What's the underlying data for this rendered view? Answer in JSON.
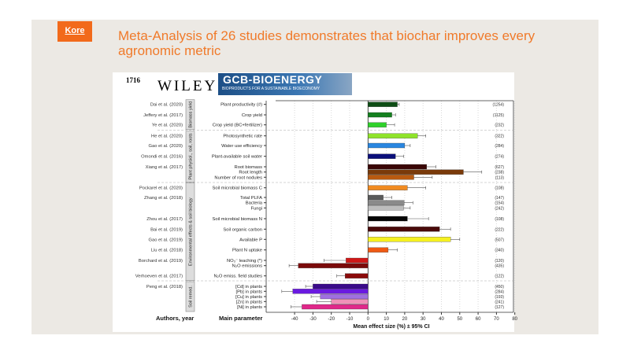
{
  "slide": {
    "logo": "Kore",
    "title": "Meta-Analysis of 26 studies demonstrates that biochar improves every agronomic metric"
  },
  "figure_header": {
    "page_number": "1716",
    "publisher": "WILEY",
    "journal": "GCB-BIOENERGY",
    "journal_subtitle": "BIOPRODUCTS FOR A SUSTAINABLE BIOECONOMY"
  },
  "chart_data": {
    "type": "bar",
    "orientation": "horizontal",
    "xlabel": "Mean effect size (%) ± 95% CI",
    "col_authors_label": "Authors, year",
    "col_param_label": "Main parameter",
    "xlim": [
      -55,
      80
    ],
    "xticks": [
      -40,
      -30,
      -20,
      -10,
      0,
      10,
      20,
      30,
      40,
      50,
      60,
      70,
      80
    ],
    "grid": true,
    "groups": [
      {
        "label": "Biomass yield",
        "rows": [
          0,
          2
        ]
      },
      {
        "label": "Plant physiol., soil, roots",
        "rows": [
          3,
          8
        ]
      },
      {
        "label": "Environmental effects & soil biology",
        "rows": [
          9,
          19
        ]
      },
      {
        "label": "Soil remed.",
        "rows": [
          20,
          24
        ]
      }
    ],
    "authors": [
      {
        "label": "Dai et al. (2020)",
        "row": 0
      },
      {
        "label": "Jeffery et al. (2017)",
        "row": 1
      },
      {
        "label": "Ye et al. (2020)",
        "row": 2
      },
      {
        "label": "He et al. (2020)",
        "row": 3
      },
      {
        "label": "Gao et al. (2020)",
        "row": 4
      },
      {
        "label": "Omondi et al. (2016)",
        "row": 5
      },
      {
        "label": "Xiang et al. (2017)",
        "row": 6
      },
      {
        "label": "Pockarel et al. (2020)",
        "row": 9
      },
      {
        "label": "Zhang et al. (2018)",
        "row": 10
      },
      {
        "label": "Zhou et al. (2017)",
        "row": 13
      },
      {
        "label": "Bai et al. (2019)",
        "row": 14
      },
      {
        "label": "Gao et al. (2019)",
        "row": 15
      },
      {
        "label": "Liu et al. (2018)",
        "row": 16
      },
      {
        "label": "Borchard et al. (2019)",
        "row": 17
      },
      {
        "label": "Verhoeven et al. (2017)",
        "row": 19
      },
      {
        "label": "Peng et al. (2018)",
        "row": 20
      }
    ],
    "series": [
      {
        "name": "Plant productivity (#)",
        "value": 16,
        "ci": 17,
        "n": "(1254)",
        "color": "#0d4d14"
      },
      {
        "name": "Crop yield",
        "value": 13,
        "ci": 15,
        "n": "(1125)",
        "color": "#14801f"
      },
      {
        "name": "Crop yield (BC+fertilizer)",
        "value": 10,
        "ci": 14.5,
        "n": "(232)",
        "color": "#2fd12a"
      },
      {
        "name": "Photosynthetic rate",
        "value": 27,
        "ci": 31.5,
        "n": "(322)",
        "color": "#8fe32a"
      },
      {
        "name": "Water use efficiency",
        "value": 20,
        "ci": 23,
        "n": "(284)",
        "color": "#2a86e0"
      },
      {
        "name": "Plant-available soil water",
        "value": 15,
        "ci": 19.5,
        "n": "(274)",
        "color": "#0b0f7a"
      },
      {
        "name": "Root biomass",
        "value": 32,
        "ci": 37,
        "n": "(627)",
        "color": "#3a0505"
      },
      {
        "name": "Root length",
        "value": 52,
        "ci": 62,
        "n": "(238)",
        "color": "#7a3a0a"
      },
      {
        "name": "Number of root nodules",
        "value": 25,
        "ci": 35,
        "n": "(113)",
        "color": "#b85a10"
      },
      {
        "name": "Soil microbial biomass C",
        "value": 21.5,
        "ci": 31.5,
        "n": "(108)",
        "color": "#f08a20"
      },
      {
        "name": "Total PLFA",
        "value": 8.3,
        "ci": 13,
        "n": "(147)",
        "color": "#5a5a5a"
      },
      {
        "name": "Bacteria",
        "value": 19.7,
        "ci": 24.5,
        "n": "(154)",
        "color": "#8a8a8a"
      },
      {
        "name": "Fungi",
        "value": 19.4,
        "ci": 23,
        "n": "(242)",
        "color": "#bdbdbd"
      },
      {
        "name": "Soil microbial biomass N",
        "value": 21.5,
        "ci": 33,
        "n": "(108)",
        "color": "#050505"
      },
      {
        "name": "Soil organic carbon",
        "value": 39,
        "ci": 45,
        "n": "(222)",
        "color": "#4a0a0a"
      },
      {
        "name": "Available P",
        "value": 45,
        "ci": 50,
        "n": "(507)",
        "color": "#f5f020"
      },
      {
        "name": "Plant N uptake",
        "value": 11,
        "ci": 16,
        "n": "(340)",
        "color": "#f05a14"
      },
      {
        "name": "NO₃⁻ leaching (*)",
        "value": -12,
        "ci": -24,
        "n": "(120)",
        "color": "#d01818"
      },
      {
        "name": "N₂O emissions",
        "value": -38,
        "ci": -43,
        "n": "(435)",
        "color": "#7a0a0a"
      },
      {
        "name": "N₂O emiss. field studies",
        "value": -12.5,
        "ci": -17,
        "n": "(122)",
        "color": "#8a0a0a"
      },
      {
        "name": "[Cd] in plants",
        "value": -30,
        "ci": -34,
        "n": "(450)",
        "color": "#3a0a8a"
      },
      {
        "name": "[Pb] in plants",
        "value": -41,
        "ci": -47,
        "n": "(284)",
        "color": "#6a1ae0"
      },
      {
        "name": "[Cu] in plants",
        "value": -26,
        "ci": -31,
        "n": "(193)",
        "color": "#a070e0"
      },
      {
        "name": "[Zn] in plants",
        "value": -20,
        "ci": -28,
        "n": "(241)",
        "color": "#f090b8"
      },
      {
        "name": "[Ni] in plants",
        "value": -36,
        "ci": -42,
        "n": "(127)",
        "color": "#e0288a"
      }
    ]
  }
}
